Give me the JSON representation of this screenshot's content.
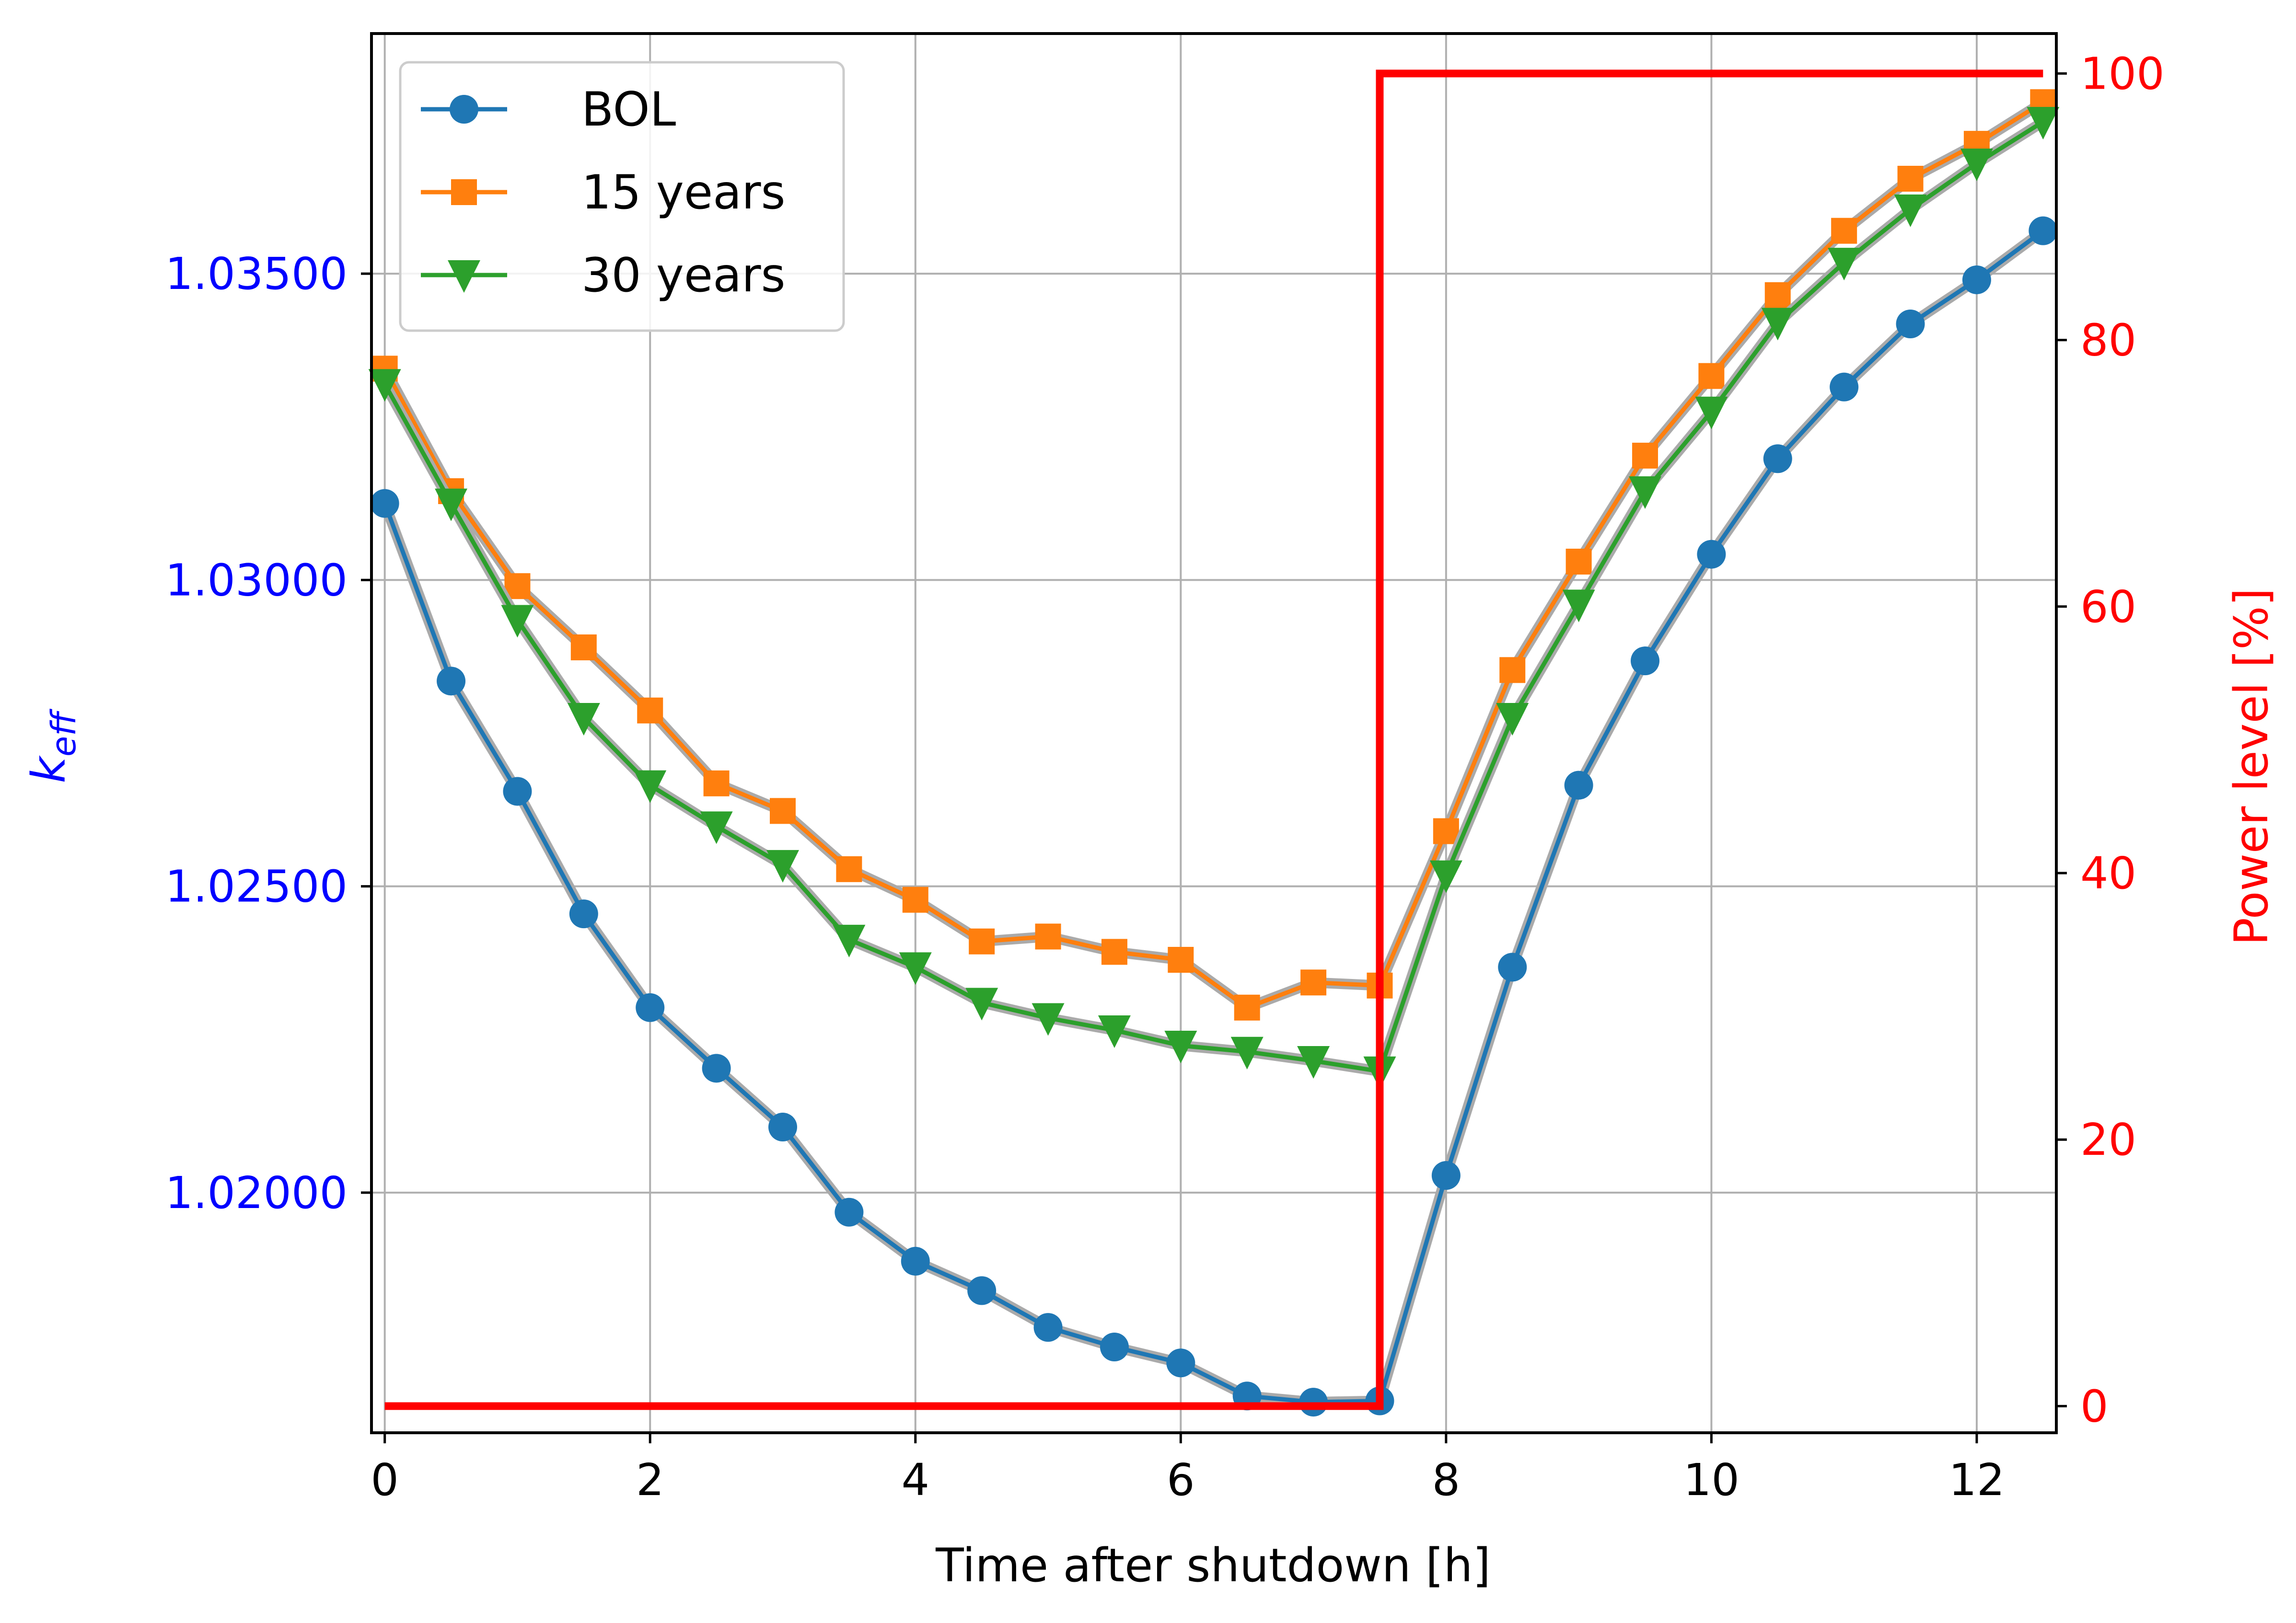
{
  "chart_data": {
    "type": "line",
    "xlabel": "Time after shutdown [h]",
    "ylabel_left": "k",
    "ylabel_left_subscript": "eff",
    "ylabel_right": "Power level [%]",
    "xlim": [
      -0.1,
      12.6
    ],
    "ylim_left": [
      1.01608,
      1.03892
    ],
    "ylim_right": [
      -2,
      103
    ],
    "x_ticks": [
      0,
      2,
      4,
      6,
      8,
      10,
      12
    ],
    "x_tick_labels": [
      "0",
      "2",
      "4",
      "6",
      "8",
      "10",
      "12"
    ],
    "y_left_ticks": [
      1.02,
      1.025,
      1.03,
      1.035
    ],
    "y_left_tick_labels": [
      "1.02000",
      "1.02500",
      "1.03000",
      "1.03500"
    ],
    "y_right_ticks": [
      0,
      20,
      40,
      60,
      80,
      100
    ],
    "y_right_tick_labels": [
      "0",
      "20",
      "40",
      "60",
      "80",
      "100"
    ],
    "grid": true,
    "legend_position": "top-left",
    "x": [
      0,
      0.5,
      1,
      1.5,
      2,
      2.5,
      3,
      3.5,
      4,
      4.5,
      5,
      5.5,
      6,
      6.5,
      7,
      7.5,
      8,
      8.5,
      9,
      9.5,
      10,
      10.5,
      11,
      11.5,
      12,
      12.5
    ],
    "series": [
      {
        "name": "BOL",
        "color": "#1f77b4",
        "marker": "circle",
        "axis": "left",
        "values": [
          1.03125,
          1.02835,
          1.02655,
          1.02455,
          1.02302,
          1.02203,
          1.02107,
          1.01968,
          1.01888,
          1.0184,
          1.0178,
          1.01748,
          1.01722,
          1.01668,
          1.01658,
          1.0166,
          1.02028,
          1.02368,
          1.02665,
          1.02868,
          1.03042,
          1.03198,
          1.03315,
          1.03418,
          1.0349,
          1.0357
        ]
      },
      {
        "name": "15 years",
        "color": "#ff7f0e",
        "marker": "square",
        "axis": "left",
        "values": [
          1.03345,
          1.03145,
          1.0299,
          1.0289,
          1.02787,
          1.02668,
          1.02623,
          1.02528,
          1.02478,
          1.0241,
          1.02418,
          1.02393,
          1.0238,
          1.02302,
          1.02343,
          1.02338,
          1.0259,
          1.02853,
          1.0303,
          1.03203,
          1.03333,
          1.03465,
          1.0357,
          1.03655,
          1.03712,
          1.0378
        ]
      },
      {
        "name": "30 years",
        "color": "#2ca02c",
        "marker": "triangle-down",
        "axis": "left",
        "values": [
          1.0332,
          1.03125,
          1.02935,
          1.02775,
          1.02665,
          1.02598,
          1.02535,
          1.02413,
          1.02368,
          1.0231,
          1.02285,
          1.02265,
          1.0224,
          1.0223,
          1.02215,
          1.02198,
          1.02518,
          1.02775,
          1.0296,
          1.03145,
          1.03275,
          1.0342,
          1.03518,
          1.03605,
          1.0368,
          1.03748
        ]
      }
    ],
    "power_series": {
      "color": "#ff0000",
      "axis": "right",
      "x": [
        0,
        7.5,
        7.5,
        12.5
      ],
      "values": [
        0,
        0,
        100,
        100
      ]
    }
  }
}
